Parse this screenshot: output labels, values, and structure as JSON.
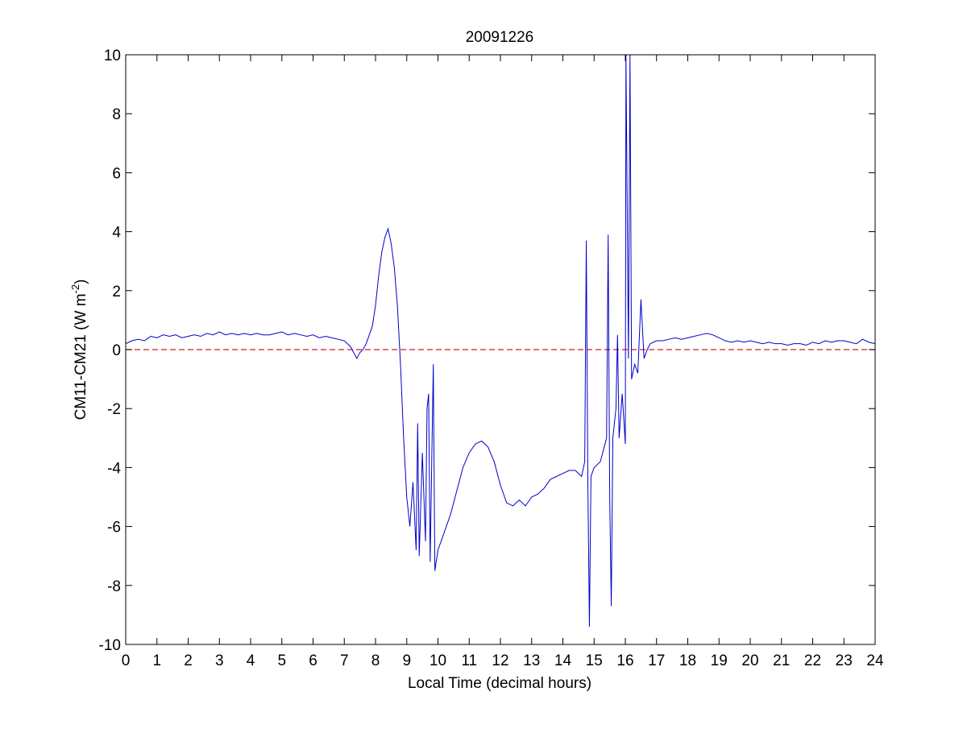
{
  "chart_data": {
    "type": "line",
    "title": "20091226",
    "xlabel": "Local Time (decimal hours)",
    "ylabel": {
      "main": "CM11-CM21 (W m",
      "superscript": "-2",
      "close": ")"
    },
    "xlim": [
      0,
      24
    ],
    "ylim": [
      -10,
      10
    ],
    "xticks": [
      0,
      1,
      2,
      3,
      4,
      5,
      6,
      7,
      8,
      9,
      10,
      11,
      12,
      13,
      14,
      15,
      16,
      17,
      18,
      19,
      20,
      21,
      22,
      23,
      24
    ],
    "yticks": [
      -10,
      -8,
      -6,
      -4,
      -2,
      0,
      2,
      4,
      6,
      8,
      10
    ],
    "grid": false,
    "series": [
      {
        "color": "#0000cc",
        "points": [
          [
            0.0,
            0.2
          ],
          [
            0.2,
            0.3
          ],
          [
            0.4,
            0.35
          ],
          [
            0.6,
            0.3
          ],
          [
            0.8,
            0.45
          ],
          [
            1.0,
            0.4
          ],
          [
            1.2,
            0.5
          ],
          [
            1.4,
            0.45
          ],
          [
            1.6,
            0.5
          ],
          [
            1.8,
            0.4
          ],
          [
            2.0,
            0.45
          ],
          [
            2.2,
            0.5
          ],
          [
            2.4,
            0.45
          ],
          [
            2.6,
            0.55
          ],
          [
            2.8,
            0.5
          ],
          [
            3.0,
            0.6
          ],
          [
            3.2,
            0.5
          ],
          [
            3.4,
            0.55
          ],
          [
            3.6,
            0.5
          ],
          [
            3.8,
            0.55
          ],
          [
            4.0,
            0.5
          ],
          [
            4.2,
            0.55
          ],
          [
            4.4,
            0.5
          ],
          [
            4.6,
            0.5
          ],
          [
            4.8,
            0.55
          ],
          [
            5.0,
            0.6
          ],
          [
            5.2,
            0.5
          ],
          [
            5.4,
            0.55
          ],
          [
            5.6,
            0.5
          ],
          [
            5.8,
            0.45
          ],
          [
            6.0,
            0.5
          ],
          [
            6.2,
            0.4
          ],
          [
            6.4,
            0.45
          ],
          [
            6.6,
            0.4
          ],
          [
            6.8,
            0.35
          ],
          [
            7.0,
            0.3
          ],
          [
            7.2,
            0.1
          ],
          [
            7.3,
            -0.1
          ],
          [
            7.4,
            -0.3
          ],
          [
            7.5,
            -0.1
          ],
          [
            7.6,
            0.0
          ],
          [
            7.7,
            0.2
          ],
          [
            7.8,
            0.5
          ],
          [
            7.9,
            0.8
          ],
          [
            8.0,
            1.5
          ],
          [
            8.1,
            2.5
          ],
          [
            8.2,
            3.3
          ],
          [
            8.3,
            3.8
          ],
          [
            8.4,
            4.1
          ],
          [
            8.5,
            3.6
          ],
          [
            8.6,
            2.8
          ],
          [
            8.7,
            1.5
          ],
          [
            8.8,
            -0.5
          ],
          [
            8.9,
            -3.0
          ],
          [
            9.0,
            -5.0
          ],
          [
            9.1,
            -6.0
          ],
          [
            9.2,
            -4.5
          ],
          [
            9.3,
            -6.8
          ],
          [
            9.35,
            -2.5
          ],
          [
            9.4,
            -7.0
          ],
          [
            9.5,
            -3.5
          ],
          [
            9.6,
            -6.5
          ],
          [
            9.65,
            -2.0
          ],
          [
            9.7,
            -1.5
          ],
          [
            9.75,
            -7.2
          ],
          [
            9.85,
            -0.5
          ],
          [
            9.9,
            -7.5
          ],
          [
            10.0,
            -6.8
          ],
          [
            10.2,
            -6.2
          ],
          [
            10.4,
            -5.6
          ],
          [
            10.6,
            -4.8
          ],
          [
            10.8,
            -4.0
          ],
          [
            11.0,
            -3.5
          ],
          [
            11.2,
            -3.2
          ],
          [
            11.4,
            -3.1
          ],
          [
            11.6,
            -3.3
          ],
          [
            11.8,
            -3.8
          ],
          [
            12.0,
            -4.6
          ],
          [
            12.2,
            -5.2
          ],
          [
            12.4,
            -5.3
          ],
          [
            12.6,
            -5.1
          ],
          [
            12.8,
            -5.3
          ],
          [
            13.0,
            -5.0
          ],
          [
            13.2,
            -4.9
          ],
          [
            13.4,
            -4.7
          ],
          [
            13.6,
            -4.4
          ],
          [
            13.8,
            -4.3
          ],
          [
            14.0,
            -4.2
          ],
          [
            14.2,
            -4.1
          ],
          [
            14.4,
            -4.1
          ],
          [
            14.6,
            -4.3
          ],
          [
            14.7,
            -3.8
          ],
          [
            14.75,
            3.7
          ],
          [
            14.8,
            -4.5
          ],
          [
            14.85,
            -9.4
          ],
          [
            14.9,
            -4.3
          ],
          [
            15.0,
            -4.0
          ],
          [
            15.2,
            -3.8
          ],
          [
            15.3,
            -3.4
          ],
          [
            15.4,
            -3.0
          ],
          [
            15.45,
            3.9
          ],
          [
            15.5,
            -5.0
          ],
          [
            15.55,
            -8.7
          ],
          [
            15.6,
            -3.0
          ],
          [
            15.7,
            -2.0
          ],
          [
            15.75,
            0.5
          ],
          [
            15.8,
            -3.0
          ],
          [
            15.9,
            -1.5
          ],
          [
            16.0,
            -3.2
          ],
          [
            16.02,
            10
          ],
          [
            16.1,
            -0.3
          ],
          [
            16.15,
            10
          ],
          [
            16.2,
            -1.0
          ],
          [
            16.3,
            -0.5
          ],
          [
            16.4,
            -0.8
          ],
          [
            16.5,
            1.7
          ],
          [
            16.6,
            -0.3
          ],
          [
            16.7,
            0.0
          ],
          [
            16.8,
            0.2
          ],
          [
            17.0,
            0.3
          ],
          [
            17.2,
            0.3
          ],
          [
            17.4,
            0.35
          ],
          [
            17.6,
            0.4
          ],
          [
            17.8,
            0.35
          ],
          [
            18.0,
            0.4
          ],
          [
            18.2,
            0.45
          ],
          [
            18.4,
            0.5
          ],
          [
            18.6,
            0.55
          ],
          [
            18.8,
            0.5
          ],
          [
            19.0,
            0.4
          ],
          [
            19.2,
            0.3
          ],
          [
            19.4,
            0.25
          ],
          [
            19.6,
            0.3
          ],
          [
            19.8,
            0.25
          ],
          [
            20.0,
            0.3
          ],
          [
            20.2,
            0.25
          ],
          [
            20.4,
            0.2
          ],
          [
            20.6,
            0.25
          ],
          [
            20.8,
            0.2
          ],
          [
            21.0,
            0.2
          ],
          [
            21.2,
            0.15
          ],
          [
            21.4,
            0.2
          ],
          [
            21.6,
            0.2
          ],
          [
            21.8,
            0.15
          ],
          [
            22.0,
            0.25
          ],
          [
            22.2,
            0.2
          ],
          [
            22.4,
            0.3
          ],
          [
            22.6,
            0.25
          ],
          [
            22.8,
            0.3
          ],
          [
            23.0,
            0.3
          ],
          [
            23.2,
            0.25
          ],
          [
            23.4,
            0.2
          ],
          [
            23.6,
            0.35
          ],
          [
            23.8,
            0.25
          ],
          [
            24.0,
            0.2
          ]
        ]
      }
    ],
    "reference_line": {
      "y": 0,
      "color": "#cc2222",
      "style": "dashed"
    }
  }
}
